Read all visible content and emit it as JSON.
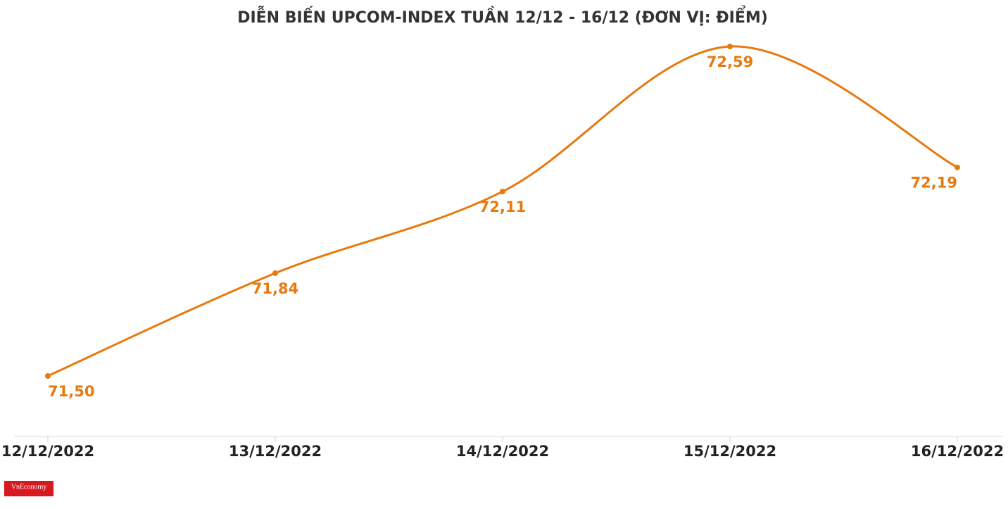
{
  "chart_data": {
    "type": "line",
    "title": "DIỄN BIẾN UPCOM-INDEX TUẦN 12/12 - 16/12 (ĐƠN VỊ: ĐIỂM)",
    "categories": [
      "12/12/2022",
      "13/12/2022",
      "14/12/2022",
      "15/12/2022",
      "16/12/2022"
    ],
    "values": [
      71.5,
      71.84,
      72.11,
      72.59,
      72.19
    ],
    "value_labels": [
      "71,50",
      "71,84",
      "72,11",
      "72,59",
      "72,19"
    ],
    "color": "#e8790f",
    "smooth": true
  },
  "logo": "VnEconomy"
}
